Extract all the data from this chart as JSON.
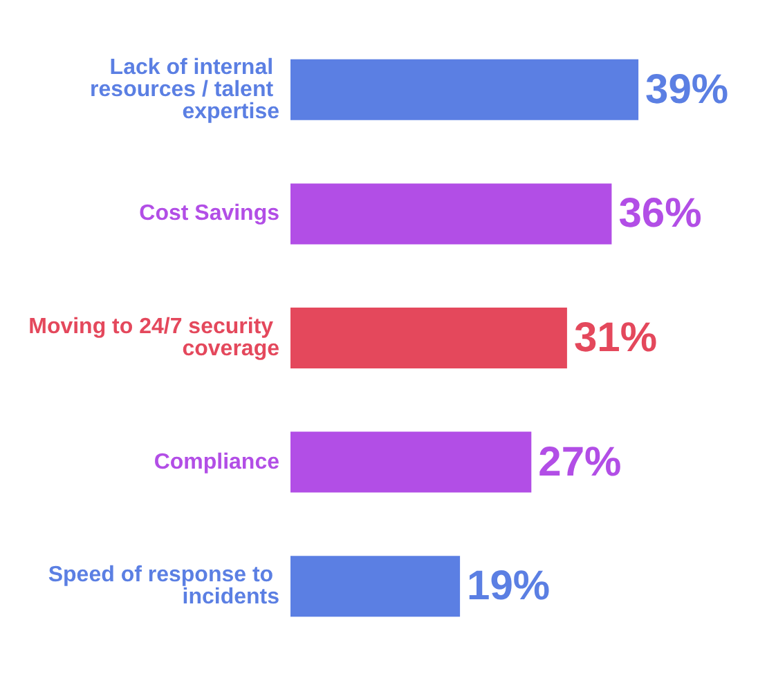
{
  "chart_data": {
    "type": "bar",
    "orientation": "horizontal",
    "categories": [
      "Lack of internal resources / talent expertise",
      "Cost Savings",
      "Moving to 24/7 security coverage",
      "Compliance",
      "Speed of response to incidents"
    ],
    "values": [
      39,
      36,
      31,
      27,
      19
    ],
    "colors": [
      "#5b7fe3",
      "#b24ee6",
      "#e4485c",
      "#b24ee6",
      "#5b7fe3"
    ],
    "value_labels": [
      "39%",
      "36%",
      "31%",
      "27%",
      "19%"
    ]
  }
}
